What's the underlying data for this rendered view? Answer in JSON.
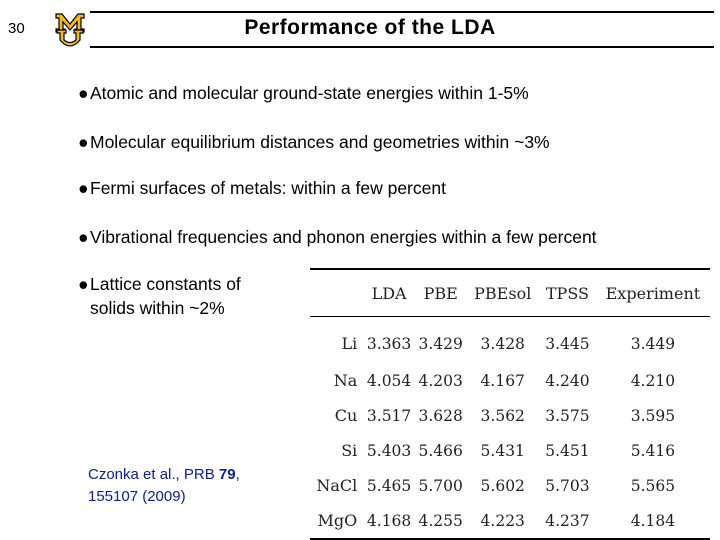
{
  "slide": {
    "number": "30",
    "title": "Performance of the LDA"
  },
  "logo": {
    "text": "MU",
    "color": "#f1b82d",
    "stroke": "#000000"
  },
  "bullets": [
    {
      "marker": "●",
      "text": "Atomic and molecular ground-state energies within 1-5%"
    },
    {
      "marker": "●",
      "text": "Molecular equilibrium distances and geometries within ~3%"
    },
    {
      "marker": "●",
      "text": "Fermi surfaces of metals: within a few percent"
    },
    {
      "marker": "●",
      "text": "Vibrational frequencies and phonon energies within a few percent"
    }
  ],
  "lattice": {
    "marker": "●",
    "line1": "Lattice constants of",
    "line2": "solids within ~2%"
  },
  "citation": {
    "prefix": "Czonka et al., PRB ",
    "volume": "79",
    "suffix": ",",
    "line2": "155107 (2009)"
  },
  "table": {
    "columns": [
      "",
      "LDA",
      "PBE",
      "PBEsol",
      "TPSS",
      "Experiment"
    ],
    "rows": [
      [
        "Li",
        "3.363",
        "3.429",
        "3.428",
        "3.445",
        "3.449"
      ],
      [
        "Na",
        "4.054",
        "4.203",
        "4.167",
        "4.240",
        "4.210"
      ],
      [
        "Cu",
        "3.517",
        "3.628",
        "3.562",
        "3.575",
        "3.595"
      ],
      [
        "Si",
        "5.403",
        "5.466",
        "5.431",
        "5.451",
        "5.416"
      ],
      [
        "NaCl",
        "5.465",
        "5.700",
        "5.602",
        "5.703",
        "5.565"
      ],
      [
        "MgO",
        "4.168",
        "4.255",
        "4.223",
        "4.237",
        "4.184"
      ]
    ]
  }
}
